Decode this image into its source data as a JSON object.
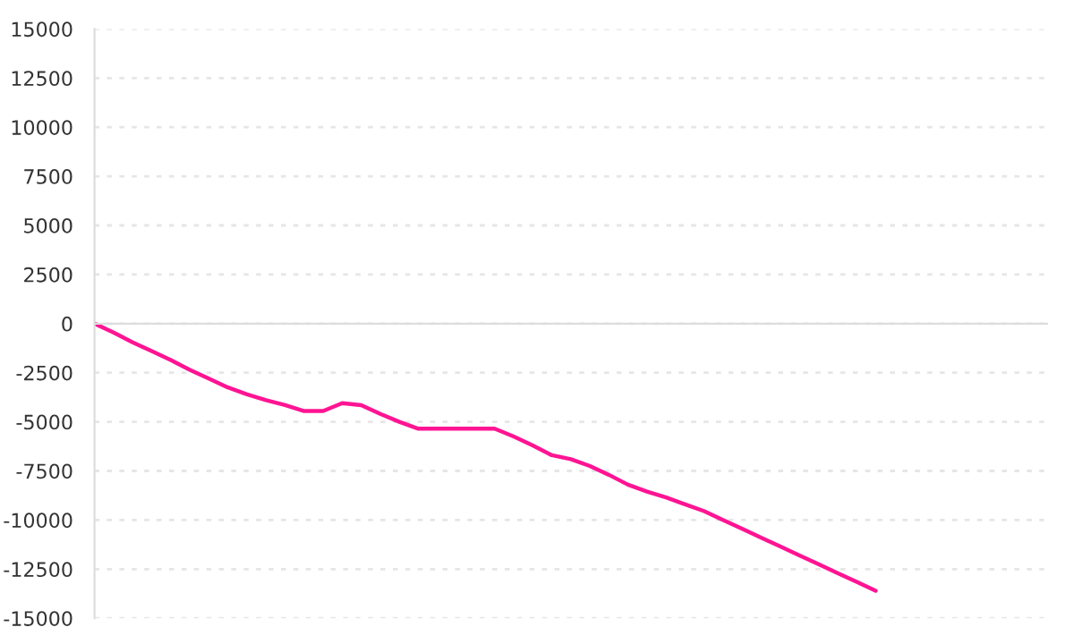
{
  "chart_data": {
    "type": "line",
    "categories": [
      null,
      null,
      null,
      null,
      null,
      null,
      null,
      null,
      null,
      null,
      null,
      null,
      null,
      null,
      null,
      null,
      null,
      null,
      null,
      null,
      null,
      null,
      null,
      null,
      null,
      null,
      null,
      null,
      null,
      null,
      null,
      null,
      null,
      null,
      null,
      null,
      null,
      null,
      null,
      null,
      null,
      null,
      null,
      null,
      null,
      null,
      null,
      null,
      null,
      null,
      null
    ],
    "series": [
      {
        "color": "#ff1493",
        "values": [
          0,
          -450,
          -950,
          -1400,
          -1850,
          -2350,
          -2800,
          -3250,
          -3600,
          -3900,
          -4150,
          -4450,
          -4450,
          -4050,
          -4150,
          -4600,
          -5000,
          -5350,
          -5350,
          -5350,
          -5350,
          -5350,
          -5750,
          -6200,
          -6700,
          -6900,
          -7250,
          -7700,
          -8200,
          -8550,
          -8850,
          -9200,
          -9550,
          -10000,
          -10450,
          -10900,
          -11350,
          -11800,
          -12250,
          -12700,
          -13150,
          -13600,
          null,
          null,
          null,
          null,
          null,
          null,
          null,
          null,
          null
        ]
      }
    ],
    "ylim": [
      -15000,
      15000
    ],
    "yticks": [
      -15000,
      -12500,
      -10000,
      -7500,
      -5000,
      -2500,
      0,
      2500,
      5000,
      7500,
      10000,
      12500,
      15000
    ],
    "grid": "y",
    "marker": "none",
    "line_style": "solid",
    "tick_labels": "y"
  }
}
